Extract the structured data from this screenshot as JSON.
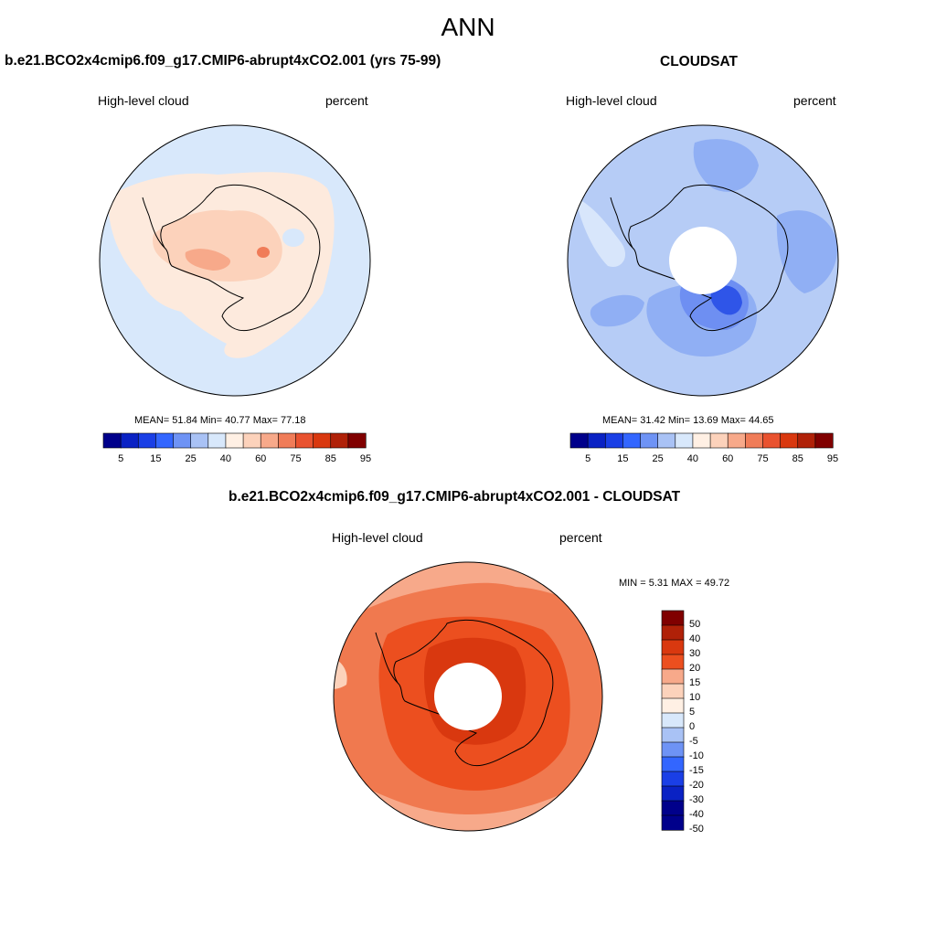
{
  "main_title": "ANN",
  "panels": {
    "model": {
      "title": "b.e21.BCO2x4cmip6.f09_g17.CMIP6-abrupt4xCO2.001 (yrs 75-99)",
      "variable": "High-level cloud",
      "units": "percent",
      "stats": {
        "mean_label": "MEAN=",
        "mean": "51.84",
        "min_label": "Min=",
        "min": "40.77",
        "max_label": "Max=",
        "max": "77.18"
      },
      "colorbar_ticks": [
        "5",
        "15",
        "25",
        "40",
        "60",
        "75",
        "85",
        "95"
      ]
    },
    "obs": {
      "title": "CLOUDSAT",
      "variable": "High-level cloud",
      "units": "percent",
      "stats": {
        "mean_label": "MEAN=",
        "mean": "31.42",
        "min_label": "Min=",
        "min": "13.69",
        "max_label": "Max=",
        "max": "44.65"
      },
      "colorbar_ticks": [
        "5",
        "15",
        "25",
        "40",
        "60",
        "75",
        "85",
        "95"
      ]
    },
    "diff": {
      "title": "b.e21.BCO2x4cmip6.f09_g17.CMIP6-abrupt4xCO2.001 - CLOUDSAT",
      "variable": "High-level cloud",
      "units": "percent",
      "stats": {
        "min_label": "MIN =",
        "min": "5.31",
        "max_label": "MAX =",
        "max": "49.72"
      },
      "colorbar_ticks": [
        "50",
        "40",
        "30",
        "20",
        "15",
        "10",
        "5",
        "0",
        "-5",
        "-10",
        "-15",
        "-20",
        "-30",
        "-40",
        "-50"
      ]
    }
  },
  "colors": {
    "abs_scale": [
      "#00008b",
      "#0a22c4",
      "#1a3fe6",
      "#3366ff",
      "#6e93f5",
      "#a9c2f5",
      "#d8e8fb",
      "#fff0e4",
      "#fcd2bb",
      "#f7a98a",
      "#f07c58",
      "#e9522f",
      "#d9380f",
      "#b02108",
      "#800000"
    ],
    "diff_scale": [
      "#800000",
      "#b02108",
      "#d9380f",
      "#ec4f1f",
      "#f7a98a",
      "#fcd2bb",
      "#fff0e4",
      "#d8e8fb",
      "#a9c2f5",
      "#6e93f5",
      "#3366ff",
      "#1a3fe6",
      "#0a22c4",
      "#00008b"
    ],
    "ocean_model": "#d8e8fb",
    "ocean_obs": "#b6ccf6",
    "ocean_diff": "#f0794f"
  }
}
